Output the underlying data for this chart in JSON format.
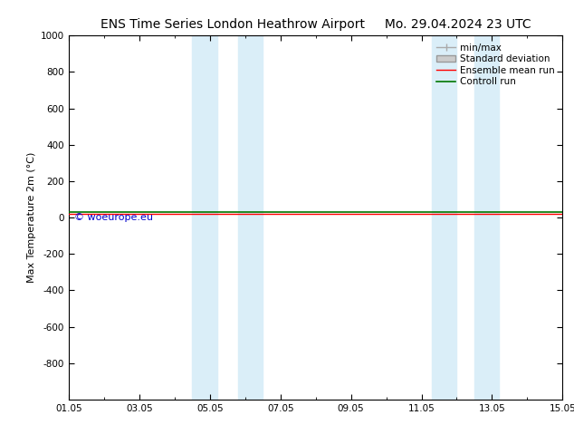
{
  "title_left": "ENS Time Series London Heathrow Airport",
  "title_right": "Mo. 29.04.2024 23 UTC",
  "ylabel": "Max Temperature 2m (°C)",
  "ylim_top": -1000,
  "ylim_bottom": 1000,
  "yticks": [
    -800,
    -600,
    -400,
    -200,
    0,
    200,
    400,
    600,
    800,
    1000
  ],
  "xtick_labels": [
    "01.05",
    "03.05",
    "05.05",
    "07.05",
    "09.05",
    "11.05",
    "13.05",
    "15.05"
  ],
  "xtick_positions": [
    0,
    2,
    4,
    6,
    8,
    10,
    12,
    14
  ],
  "xlim": [
    0,
    14
  ],
  "shaded_bands": [
    [
      3.5,
      4.2
    ],
    [
      4.8,
      5.5
    ],
    [
      10.3,
      11.0
    ],
    [
      11.5,
      12.2
    ]
  ],
  "shade_color": "#daeef8",
  "background_color": "#ffffff",
  "plot_bg_color": "#ffffff",
  "border_color": "#000000",
  "legend_entries": [
    {
      "label": "min/max",
      "color": "#aaaaaa",
      "lw": 1.0,
      "style": "-"
    },
    {
      "label": "Standard deviation",
      "facecolor": "#cccccc",
      "edgecolor": "#999999"
    },
    {
      "label": "Ensemble mean run",
      "color": "#ff0000",
      "lw": 1.0,
      "style": "-"
    },
    {
      "label": "Controll run",
      "color": "#007700",
      "lw": 1.2,
      "style": "-"
    }
  ],
  "ensemble_mean_y": 20,
  "control_run_y": 30,
  "watermark": "© woeurope.eu",
  "watermark_color": "#0000cc",
  "title_fontsize": 10,
  "axis_label_fontsize": 8,
  "tick_fontsize": 7.5,
  "legend_fontsize": 7.5
}
